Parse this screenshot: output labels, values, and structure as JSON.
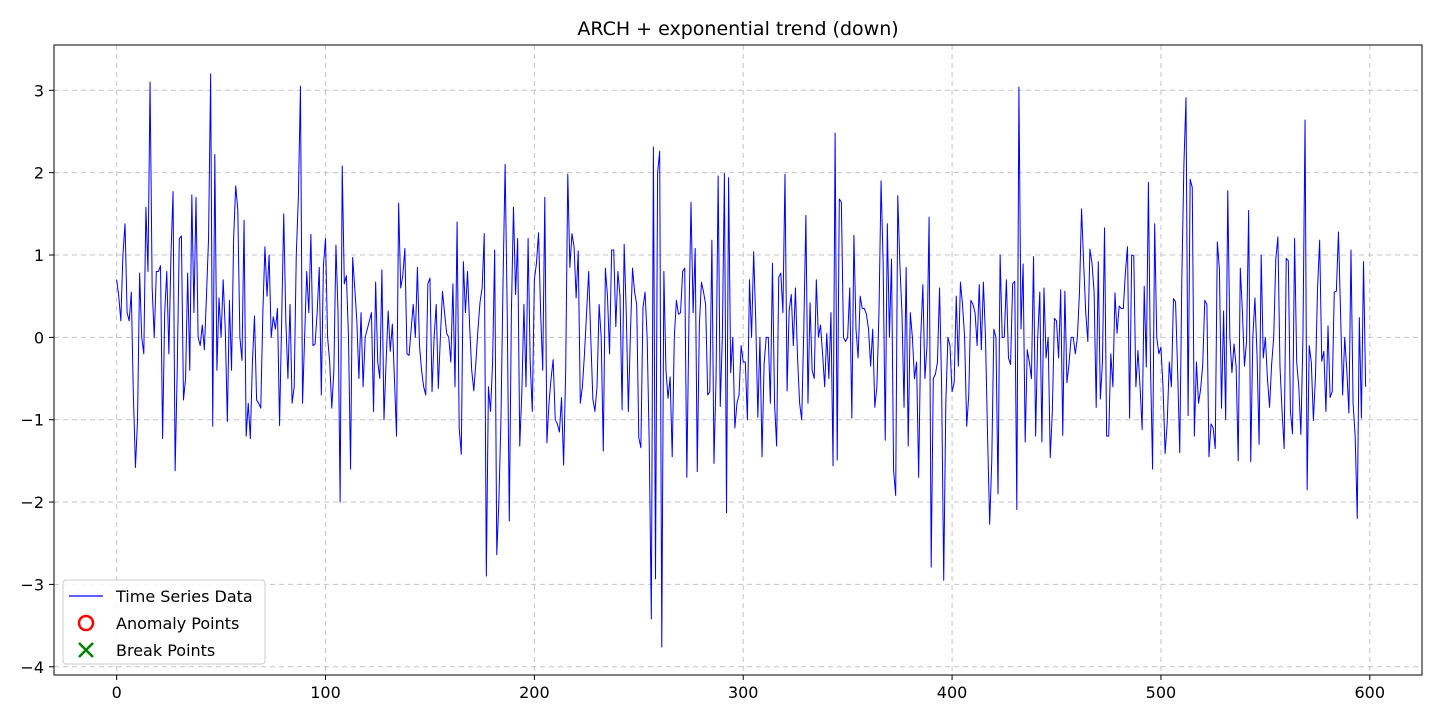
{
  "chart_data": {
    "type": "line",
    "title": "ARCH + exponential trend (down)",
    "xlabel": "",
    "ylabel": "",
    "xlim": [
      -30,
      625
    ],
    "ylim": [
      -4.1,
      3.55
    ],
    "x_ticks": [
      0,
      100,
      200,
      300,
      400,
      500,
      600
    ],
    "y_ticks": [
      -4,
      -3,
      -2,
      -1,
      0,
      1,
      2,
      3
    ],
    "x_tick_labels": [
      "0",
      "100",
      "200",
      "300",
      "400",
      "500",
      "600"
    ],
    "y_tick_labels": [
      "−4",
      "−3",
      "−2",
      "−1",
      "0",
      "1",
      "2",
      "3"
    ],
    "grid": true,
    "legend_position": "lower-left",
    "legend": [
      {
        "label": "Time Series Data",
        "marker": "line",
        "color": "#0000ff"
      },
      {
        "label": "Anomaly Points",
        "marker": "circle",
        "color": "#ff0000"
      },
      {
        "label": "Break Points",
        "marker": "x",
        "color": "#008000"
      }
    ],
    "series": [
      {
        "name": "Time Series Data",
        "color": "#0000ff",
        "x_start": 0,
        "x_step": 1,
        "values": [
          0.7,
          0.5,
          0.2,
          1.0,
          1.38,
          0.3,
          0.2,
          0.55,
          -0.7,
          -1.58,
          -1.0,
          0.78,
          0.0,
          -0.2,
          1.58,
          0.8,
          3.1,
          0.6,
          0.0,
          0.8,
          0.8,
          0.87,
          -1.23,
          0.3,
          0.8,
          -0.2,
          1.0,
          1.77,
          -1.62,
          -0.4,
          1.2,
          1.23,
          -0.76,
          -0.5,
          0.78,
          -0.4,
          1.73,
          0.3,
          1.7,
          0.0,
          -0.1,
          0.15,
          -0.15,
          0.5,
          1.2,
          3.2,
          -1.08,
          2.22,
          -0.4,
          0.48,
          0.0,
          0.7,
          0.1,
          -1.02,
          0.45,
          -0.4,
          1.2,
          1.84,
          1.55,
          0.0,
          -0.28,
          1.42,
          -1.2,
          -0.8,
          -1.23,
          -0.3,
          0.26,
          -0.76,
          -0.8,
          -0.86,
          0.3,
          1.1,
          0.5,
          1.0,
          0.0,
          0.25,
          0.1,
          0.35,
          -1.07,
          0.2,
          1.5,
          0.2,
          -0.5,
          0.4,
          -0.8,
          -0.6,
          1.0,
          1.7,
          3.05,
          -0.8,
          0.0,
          0.8,
          0.3,
          1.25,
          -0.1,
          -0.08,
          0.3,
          0.85,
          -0.7,
          0.87,
          1.2,
          0.0,
          -0.3,
          -0.86,
          -0.4,
          1.12,
          0.3,
          -2.0,
          2.08,
          0.65,
          0.75,
          0.0,
          -1.6,
          0.97,
          0.6,
          0.2,
          -0.5,
          0.3,
          -0.6,
          0.0,
          0.1,
          0.2,
          0.3,
          -0.9,
          0.67,
          -0.3,
          -0.5,
          0.82,
          -1.0,
          -0.3,
          0.32,
          -0.17,
          0.16,
          -0.5,
          -1.2,
          1.63,
          0.6,
          0.75,
          1.08,
          -0.2,
          -0.22,
          0.1,
          0.4,
          0.0,
          0.85,
          -0.1,
          -0.4,
          -0.6,
          -0.7,
          0.65,
          0.72,
          -0.66,
          0.0,
          0.4,
          -0.62,
          0.0,
          0.56,
          0.3,
          0.05,
          0.0,
          -0.3,
          0.65,
          -0.6,
          1.4,
          -1.1,
          -1.42,
          0.92,
          0.3,
          0.8,
          0.15,
          -0.4,
          -0.65,
          -0.3,
          0.1,
          0.43,
          0.6,
          1.26,
          -2.9,
          -0.6,
          -0.9,
          -0.3,
          1.06,
          -2.64,
          -2.0,
          -1.0,
          0.68,
          2.1,
          0.3,
          -2.23,
          0.3,
          1.58,
          0.52,
          1.2,
          -1.32,
          -0.67,
          0.4,
          -0.6,
          1.2,
          -0.3,
          -0.9,
          0.7,
          0.9,
          1.27,
          0.3,
          -0.4,
          1.7,
          -1.28,
          -0.8,
          -0.5,
          -0.27,
          -1.0,
          -1.05,
          -1.15,
          -0.73,
          -1.55,
          -0.4,
          1.98,
          0.85,
          1.26,
          1.1,
          0.48,
          1.05,
          -0.8,
          -0.6,
          -0.2,
          0.3,
          0.8,
          0.0,
          -0.75,
          -0.9,
          -0.6,
          0.4,
          0.0,
          -1.38,
          0.84,
          0.5,
          -0.2,
          1.06,
          1.06,
          0.13,
          0.8,
          0.5,
          -0.88,
          1.13,
          0.3,
          -0.9,
          0.06,
          0.84,
          0.55,
          0.4,
          -1.22,
          -1.34,
          0.36,
          0.55,
          0.0,
          -1.3,
          -3.42,
          2.31,
          -2.93,
          2.0,
          2.26,
          -3.76,
          0.8,
          -0.4,
          -0.74,
          -0.48,
          -1.45,
          0.0,
          0.45,
          0.28,
          0.3,
          0.8,
          0.84,
          -1.7,
          0.2,
          1.64,
          0.3,
          1.08,
          -1.63,
          0.15,
          0.67,
          0.55,
          0.4,
          -0.7,
          -0.66,
          1.18,
          -1.53,
          -0.48,
          1.96,
          -0.84,
          0.0,
          1.99,
          -2.13,
          1.94,
          -0.43,
          0.0,
          -1.1,
          -0.8,
          -0.7,
          -0.1,
          -0.3,
          -0.3,
          -1.0,
          0.7,
          0.0,
          1.04,
          0.2,
          -0.97,
          0.0,
          -1.45,
          -0.32,
          0.0,
          0.0,
          -0.8,
          0.9,
          -0.8,
          -1.32,
          0.73,
          0.78,
          0.3,
          1.98,
          -0.65,
          0.33,
          0.52,
          -0.1,
          0.6,
          -0.24,
          -0.8,
          -1.0,
          0.1,
          1.48,
          -0.8,
          0.42,
          -0.4,
          -0.5,
          0.7,
          0.0,
          0.15,
          -0.2,
          -0.6,
          0.05,
          -0.5,
          0.3,
          -1.56,
          2.48,
          -1.49,
          1.68,
          1.64,
          0.0,
          -0.05,
          0.0,
          0.6,
          -0.98,
          1.24,
          0.1,
          -0.25,
          0.5,
          0.35,
          0.35,
          0.28,
          0.1,
          -0.35,
          0.1,
          -0.85,
          -0.6,
          0.3,
          1.9,
          0.9,
          -1.25,
          1.38,
          0.0,
          0.95,
          -1.62,
          -1.92,
          1.72,
          0.88,
          0.3,
          -0.85,
          0.85,
          -1.32,
          0.3,
          0.0,
          -0.5,
          -0.3,
          -1.7,
          0.0,
          0.64,
          -0.5,
          -0.1,
          1.46,
          -2.79,
          -0.5,
          -0.45,
          -0.3,
          0.6,
          -0.6,
          -2.95,
          -0.8,
          0.0,
          -0.1,
          -0.66,
          -0.55,
          0.5,
          -0.35,
          0.67,
          0.4,
          0.0,
          -1.08,
          -0.7,
          0.45,
          0.4,
          0.3,
          -0.1,
          0.64,
          -0.15,
          0.67,
          0.0,
          -1.2,
          -2.27,
          -1.5,
          0.1,
          0.0,
          -1.9,
          1.0,
          0.0,
          0.0,
          0.7,
          -0.25,
          -0.33,
          0.65,
          0.68,
          -2.09,
          3.04,
          0.1,
          0.89,
          -1.27,
          -0.15,
          -0.3,
          -0.5,
          0.98,
          -1.2,
          0.0,
          0.55,
          -1.27,
          0.6,
          -0.25,
          0.0,
          -1.46,
          -0.9,
          0.23,
          0.2,
          -0.25,
          0.58,
          -1.19,
          0.56,
          -0.55,
          -0.32,
          0.0,
          0.0,
          -0.2,
          0.0,
          0.55,
          1.56,
          0.9,
          0.3,
          -0.05,
          1.07,
          0.9,
          0.55,
          -0.85,
          0.92,
          -0.75,
          -0.3,
          1.33,
          -1.2,
          -1.2,
          -0.2,
          -0.6,
          0.54,
          0.05,
          0.38,
          0.35,
          0.35,
          0.8,
          1.1,
          -0.98,
          1.0,
          0.99,
          -0.6,
          -0.16,
          -0.6,
          -1.12,
          0.62,
          -0.36,
          1.88,
          -0.35,
          -1.6,
          1.38,
          0.0,
          -0.2,
          -0.12,
          -0.6,
          -1.41,
          -1.04,
          -0.3,
          -0.6,
          0.47,
          0.43,
          -0.4,
          -1.4,
          0.7,
          2.1,
          2.91,
          -0.95,
          1.92,
          1.82,
          -1.2,
          -0.3,
          -0.8,
          -0.63,
          -0.34,
          0.45,
          0.4,
          -1.45,
          -1.05,
          -1.1,
          -1.35,
          1.16,
          0.83,
          -0.86,
          0.32,
          -1.0,
          1.78,
          0.0,
          -0.43,
          -0.08,
          -0.35,
          -1.5,
          0.84,
          0.32,
          -0.35,
          -0.04,
          1.54,
          -1.51,
          0.0,
          0.48,
          -0.2,
          -1.3,
          1.0,
          -0.25,
          0.0,
          -0.5,
          -0.85,
          -0.33,
          0.0,
          0.95,
          1.22,
          -0.35,
          -0.9,
          -1.35,
          0.96,
          0.93,
          -0.9,
          -1.17,
          1.2,
          -0.3,
          -0.6,
          -1.18,
          0.0,
          2.64,
          -1.85,
          -0.1,
          -0.3,
          -1.01,
          -0.47,
          0.6,
          1.18,
          -0.29,
          -0.17,
          -0.9,
          0.14,
          -0.73,
          -0.66,
          0.55,
          0.56,
          1.28,
          0.3,
          -0.7,
          0.0,
          -0.4,
          -0.92,
          1.06,
          -0.8,
          -1.2,
          -2.2,
          0.24,
          -0.98,
          0.92,
          -0.6
        ]
      }
    ]
  }
}
